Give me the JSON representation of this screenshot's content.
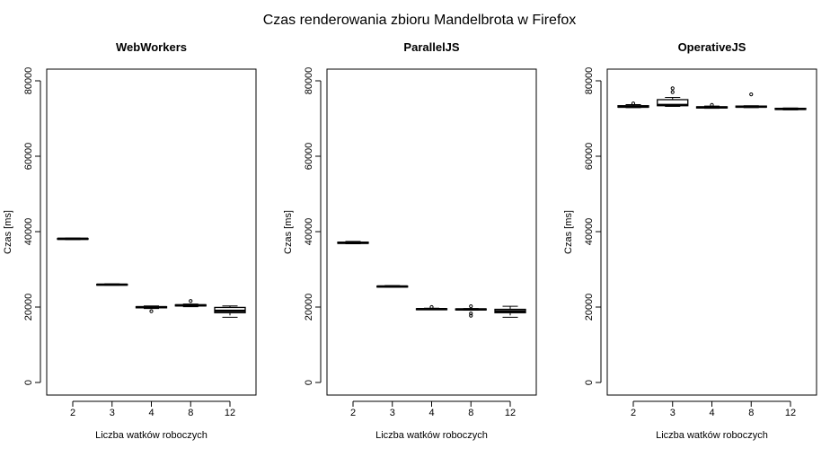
{
  "figure": {
    "title": "Czas renderowania zbioru Mandelbrota w Firefox"
  },
  "chart_data": [
    {
      "type": "box",
      "title": "WebWorkers",
      "xlabel": "Liczba watków roboczych",
      "ylabel": "Czas [ms]",
      "ylim": [
        0,
        80000
      ],
      "yticks": [
        0,
        20000,
        40000,
        60000,
        80000
      ],
      "categories": [
        "2",
        "3",
        "4",
        "8",
        "12"
      ],
      "boxes": [
        {
          "q1": 38000,
          "median": 38100,
          "q3": 38200,
          "whisker_low": 37900,
          "whisker_high": 38300,
          "outliers": []
        },
        {
          "q1": 25850,
          "median": 25950,
          "q3": 26050,
          "whisker_low": 25800,
          "whisker_high": 26150,
          "outliers": []
        },
        {
          "q1": 19800,
          "median": 19950,
          "q3": 20100,
          "whisker_low": 19600,
          "whisker_high": 20300,
          "outliers": [
            18900
          ]
        },
        {
          "q1": 20300,
          "median": 20450,
          "q3": 20600,
          "whisker_low": 20100,
          "whisker_high": 20800,
          "outliers": [
            21600
          ]
        },
        {
          "q1": 18500,
          "median": 19000,
          "q3": 19900,
          "whisker_low": 17300,
          "whisker_high": 20300,
          "outliers": []
        }
      ],
      "color": "#000000"
    },
    {
      "type": "box",
      "title": "ParallelJS",
      "xlabel": "Liczba watków roboczych",
      "ylabel": "Czas [ms]",
      "ylim": [
        0,
        80000
      ],
      "yticks": [
        0,
        20000,
        40000,
        60000,
        80000
      ],
      "categories": [
        "2",
        "3",
        "4",
        "8",
        "12"
      ],
      "boxes": [
        {
          "q1": 36900,
          "median": 37050,
          "q3": 37200,
          "whisker_low": 36800,
          "whisker_high": 37400,
          "outliers": []
        },
        {
          "q1": 25350,
          "median": 25450,
          "q3": 25550,
          "whisker_low": 25300,
          "whisker_high": 25700,
          "outliers": []
        },
        {
          "q1": 19350,
          "median": 19450,
          "q3": 19550,
          "whisker_low": 19300,
          "whisker_high": 19700,
          "outliers": [
            20000
          ]
        },
        {
          "q1": 19300,
          "median": 19400,
          "q3": 19500,
          "whisker_low": 19200,
          "whisker_high": 19600,
          "outliers": [
            18300,
            17700,
            20200
          ]
        },
        {
          "q1": 18500,
          "median": 18900,
          "q3": 19400,
          "whisker_low": 17300,
          "whisker_high": 20200,
          "outliers": []
        }
      ],
      "color": "#000000"
    },
    {
      "type": "box",
      "title": "OperativeJS",
      "xlabel": "Liczba watków roboczych",
      "ylabel": "Czas [ms]",
      "ylim": [
        0,
        80000
      ],
      "yticks": [
        0,
        20000,
        40000,
        60000,
        80000
      ],
      "categories": [
        "2",
        "3",
        "4",
        "8",
        "12"
      ],
      "boxes": [
        {
          "q1": 73000,
          "median": 73150,
          "q3": 73400,
          "whisker_low": 72900,
          "whisker_high": 73700,
          "outliers": [
            74000
          ]
        },
        {
          "q1": 73400,
          "median": 73600,
          "q3": 75000,
          "whisker_low": 73200,
          "whisker_high": 75600,
          "outliers": [
            77000,
            78000
          ]
        },
        {
          "q1": 72800,
          "median": 72950,
          "q3": 73100,
          "whisker_low": 72700,
          "whisker_high": 73300,
          "outliers": [
            73600
          ]
        },
        {
          "q1": 73000,
          "median": 73150,
          "q3": 73300,
          "whisker_low": 72900,
          "whisker_high": 73400,
          "outliers": [
            76400
          ]
        },
        {
          "q1": 72400,
          "median": 72550,
          "q3": 72700,
          "whisker_low": 72300,
          "whisker_high": 72800,
          "outliers": []
        }
      ],
      "color": "#000000"
    }
  ]
}
